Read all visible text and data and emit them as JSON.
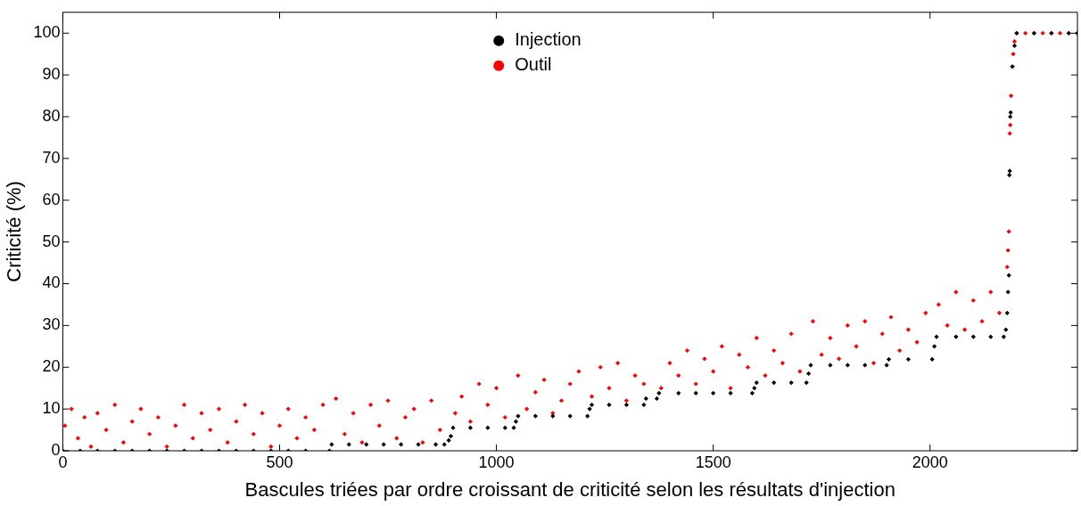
{
  "chart_data": {
    "type": "scatter",
    "xlabel": "Bascules triées par ordre croissant de criticité selon les résultats d'injection",
    "ylabel": "Criticité (%)",
    "xlim": [
      0,
      2340
    ],
    "xticks": [
      0,
      500,
      1000,
      1500,
      2000
    ],
    "ylim": [
      0,
      105
    ],
    "yticks": [
      0,
      10,
      20,
      30,
      40,
      50,
      60,
      70,
      80,
      90,
      100
    ],
    "grid": false,
    "legend": "top",
    "marker": "diamond",
    "series": [
      {
        "name": "Injection",
        "color": "#000000",
        "x": [
          0,
          40,
          80,
          120,
          160,
          200,
          240,
          280,
          320,
          360,
          400,
          440,
          480,
          520,
          560,
          615,
          620,
          660,
          700,
          740,
          780,
          820,
          860,
          880,
          890,
          895,
          900,
          940,
          980,
          1020,
          1040,
          1045,
          1050,
          1090,
          1130,
          1170,
          1210,
          1215,
          1220,
          1260,
          1300,
          1340,
          1345,
          1370,
          1375,
          1420,
          1460,
          1500,
          1540,
          1590,
          1595,
          1600,
          1640,
          1680,
          1715,
          1720,
          1725,
          1770,
          1810,
          1850,
          1900,
          1905,
          1950,
          2005,
          2010,
          2015,
          2060,
          2100,
          2140,
          2170,
          2175,
          2178,
          2180,
          2182,
          2183,
          2184,
          2185,
          2186,
          2190,
          2195,
          2200,
          2240,
          2280,
          2320,
          2340
        ],
        "values": [
          0,
          0,
          0,
          0,
          0,
          0,
          0,
          0,
          0,
          0,
          0,
          0,
          0,
          0,
          0,
          0,
          1.5,
          1.5,
          1.5,
          1.5,
          1.5,
          1.5,
          1.5,
          1.5,
          2.5,
          3.5,
          5.5,
          5.5,
          5.5,
          5.5,
          5.5,
          7,
          8.3,
          8.3,
          8.3,
          8.3,
          8.3,
          10,
          11,
          11,
          11,
          11,
          12.5,
          12.5,
          13.8,
          13.8,
          13.8,
          13.8,
          13.8,
          13.8,
          15,
          16.3,
          16.3,
          16.3,
          16.3,
          18.5,
          20.5,
          20.5,
          20.5,
          20.5,
          20.5,
          21.9,
          21.9,
          21.9,
          25,
          27.3,
          27.3,
          27.3,
          27.3,
          27.3,
          29,
          33,
          38,
          42,
          66,
          67,
          80,
          81,
          92,
          97,
          100,
          100,
          100,
          100,
          100
        ]
      },
      {
        "name": "Outil",
        "color": "#ff0000",
        "x": [
          5,
          20,
          35,
          50,
          65,
          80,
          100,
          120,
          140,
          160,
          180,
          200,
          220,
          240,
          260,
          280,
          300,
          320,
          340,
          360,
          380,
          400,
          420,
          440,
          460,
          480,
          500,
          520,
          540,
          560,
          580,
          600,
          630,
          650,
          670,
          690,
          710,
          730,
          750,
          770,
          790,
          810,
          830,
          850,
          870,
          905,
          920,
          940,
          960,
          980,
          1000,
          1020,
          1050,
          1070,
          1090,
          1110,
          1130,
          1150,
          1170,
          1190,
          1220,
          1240,
          1260,
          1280,
          1300,
          1320,
          1340,
          1380,
          1400,
          1420,
          1440,
          1460,
          1480,
          1500,
          1520,
          1540,
          1560,
          1580,
          1600,
          1620,
          1640,
          1660,
          1680,
          1700,
          1730,
          1750,
          1770,
          1790,
          1810,
          1830,
          1850,
          1870,
          1890,
          1910,
          1930,
          1950,
          1970,
          1990,
          2020,
          2040,
          2060,
          2080,
          2100,
          2120,
          2140,
          2160,
          2178,
          2180,
          2182,
          2184,
          2185,
          2187,
          2190,
          2192,
          2195,
          2200,
          2220,
          2240,
          2260,
          2280,
          2300,
          2320,
          2340
        ],
        "values": [
          6,
          10,
          3,
          8,
          1,
          9,
          5,
          11,
          2,
          7,
          10,
          4,
          8,
          1,
          6,
          11,
          3,
          9,
          5,
          10,
          2,
          7,
          11,
          4,
          9,
          1,
          6,
          10,
          3,
          8,
          5,
          11,
          12.5,
          4,
          9,
          2,
          11,
          6,
          12,
          3,
          8,
          10,
          2,
          12,
          5,
          9,
          13,
          7,
          16,
          11,
          15,
          8,
          18,
          10,
          14,
          17,
          9,
          12,
          16,
          19,
          13,
          20,
          15,
          21,
          12,
          18,
          16,
          15,
          21,
          18,
          24,
          16,
          22,
          19,
          25,
          15,
          23,
          20,
          27,
          18,
          24,
          21,
          28,
          19,
          31,
          23,
          27,
          22,
          30,
          25,
          31,
          21,
          28,
          32,
          24,
          29,
          26,
          33,
          35,
          30,
          38,
          29,
          36,
          31,
          38,
          33,
          44,
          48,
          52.5,
          76,
          78,
          85,
          92,
          95,
          98,
          100,
          100,
          100,
          100,
          100,
          100,
          100,
          100
        ]
      }
    ]
  }
}
